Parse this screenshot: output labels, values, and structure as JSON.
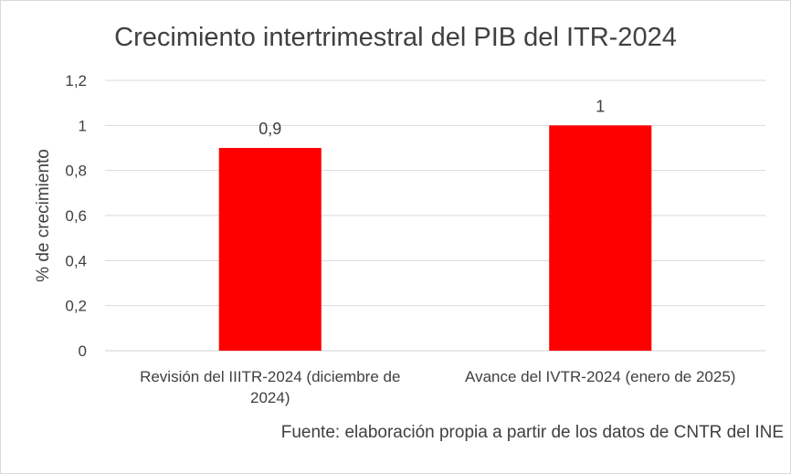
{
  "chart_data": {
    "type": "bar",
    "title": "Crecimiento intertrimestral del PIB del ITR-2024",
    "ylabel": "% de crecimiento",
    "xlabel": "",
    "categories": [
      [
        "Revisión del IIITR-2024 (diciembre de",
        "2024)"
      ],
      [
        "Avance del IVTR-2024 (enero de 2025)"
      ]
    ],
    "values": [
      0.9,
      1
    ],
    "data_labels": [
      "0,9",
      "1"
    ],
    "ylim": [
      0,
      1.2
    ],
    "yticks": [
      0,
      0.2,
      0.4,
      0.6,
      0.8,
      1,
      1.2
    ],
    "ytick_labels": [
      "0",
      "0,2",
      "0,4",
      "0,6",
      "0,8",
      "1",
      "1,2"
    ],
    "grid": true,
    "legend": "none",
    "bar_color": "#ff0000",
    "grid_color": "#d9d9d9"
  },
  "source_note": "Fuente: elaboración propia a partir de los datos de CNTR del INE"
}
